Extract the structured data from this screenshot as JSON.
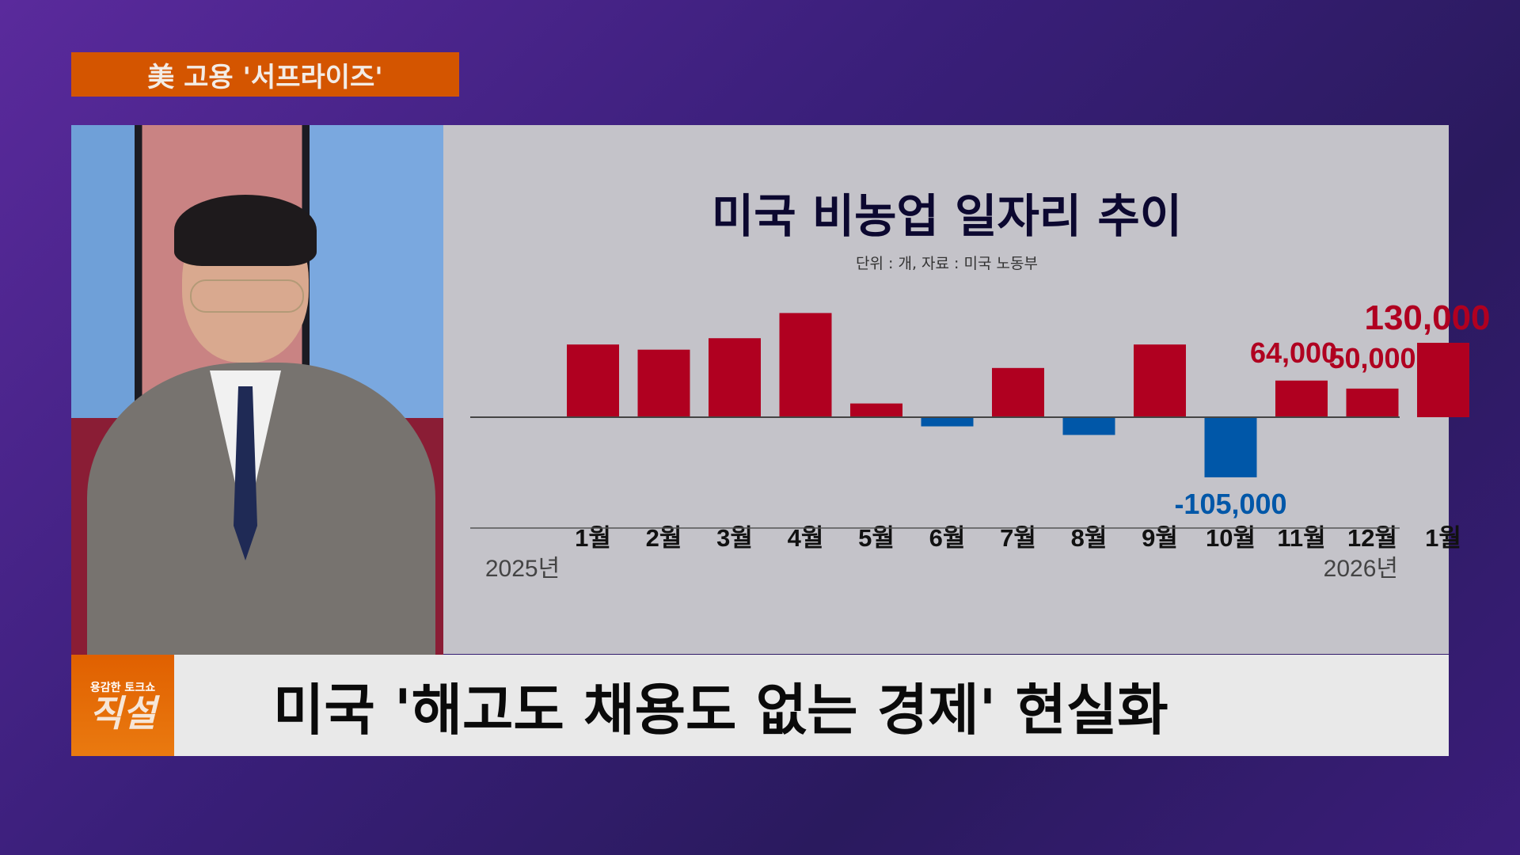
{
  "top_banner": "美 고용 '서프라이즈'",
  "headline": "미국 '해고도 채용도 없는 경제' 현실화",
  "logo": {
    "small": "용감한 토크쇼",
    "big": "직설"
  },
  "chart_data": {
    "type": "bar",
    "title": "미국 비농업 일자리 추이",
    "subtitle": "단위 : 개, 자료 : 미국 노동부",
    "categories": [
      "1월",
      "2월",
      "3월",
      "4월",
      "5월",
      "6월",
      "7월",
      "8월",
      "9월",
      "10월",
      "11월",
      "12월",
      "1월"
    ],
    "year_labels": {
      "start": "2025년",
      "end": "2026년"
    },
    "values": [
      127000,
      118000,
      138000,
      182000,
      24000,
      -16000,
      86000,
      -31000,
      127000,
      -105000,
      64000,
      50000,
      130000
    ],
    "data_labels": [
      {
        "index": 9,
        "text": "-105,000"
      },
      {
        "index": 10,
        "text": "64,000"
      },
      {
        "index": 11,
        "text": "50,000"
      },
      {
        "index": 12,
        "text": "130,000"
      }
    ],
    "colors": {
      "positive": "#b00020",
      "negative": "#0057a8"
    },
    "grid": false
  }
}
